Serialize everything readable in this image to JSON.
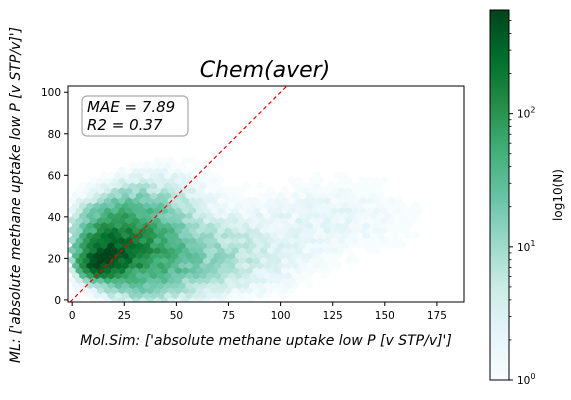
{
  "chart_data": {
    "type": "hexbin",
    "title": "Chem(aver)",
    "xlabel": "Mol.Sim: ['absolute methane uptake low P [v STP/v]']",
    "ylabel": "ML: ['absolute methane uptake low P [v STP/v]']",
    "xlim": [
      -2,
      188
    ],
    "ylim": [
      -1,
      103
    ],
    "xticks": [
      "0",
      "25",
      "50",
      "75",
      "100",
      "125",
      "150",
      "175"
    ],
    "yticks": [
      "0",
      "20",
      "40",
      "60",
      "80",
      "100"
    ],
    "metrics": {
      "mae": "MAE = 7.89",
      "r2": "R2 = 0.37"
    },
    "reference_line": {
      "type": "y=x",
      "color": "#ff0000",
      "style": "dashed"
    },
    "colorbar": {
      "label": "log10(N)",
      "scale": "log",
      "range": [
        1,
        600
      ],
      "ticks": [
        "10^0",
        "10^1",
        "10^2"
      ],
      "colors": [
        "#f7fcfd",
        "#e5f5f9",
        "#ccece6",
        "#99d8c9",
        "#66c2a4",
        "#41ae76",
        "#238b45",
        "#006d2c",
        "#00441b"
      ]
    },
    "density_clusters": [
      {
        "x": 13,
        "y": 18,
        "count": 600,
        "spread_x": 4,
        "spread_y": 3
      },
      {
        "x": 22,
        "y": 28,
        "count": 150,
        "spread_x": 9,
        "spread_y": 8
      },
      {
        "x": 18,
        "y": 22,
        "count": 300,
        "spread_x": 7,
        "spread_y": 5
      },
      {
        "x": 35,
        "y": 22,
        "count": 60,
        "spread_x": 12,
        "spread_y": 10
      },
      {
        "x": 30,
        "y": 40,
        "count": 25,
        "spread_x": 12,
        "spread_y": 8
      },
      {
        "x": 55,
        "y": 22,
        "count": 12,
        "spread_x": 15,
        "spread_y": 10
      },
      {
        "x": 80,
        "y": 22,
        "count": 4,
        "spread_x": 20,
        "spread_y": 12
      },
      {
        "x": 45,
        "y": 50,
        "count": 3,
        "spread_x": 15,
        "spread_y": 10
      },
      {
        "x": 125,
        "y": 40,
        "count": 2,
        "spread_x": 25,
        "spread_y": 12
      }
    ]
  }
}
